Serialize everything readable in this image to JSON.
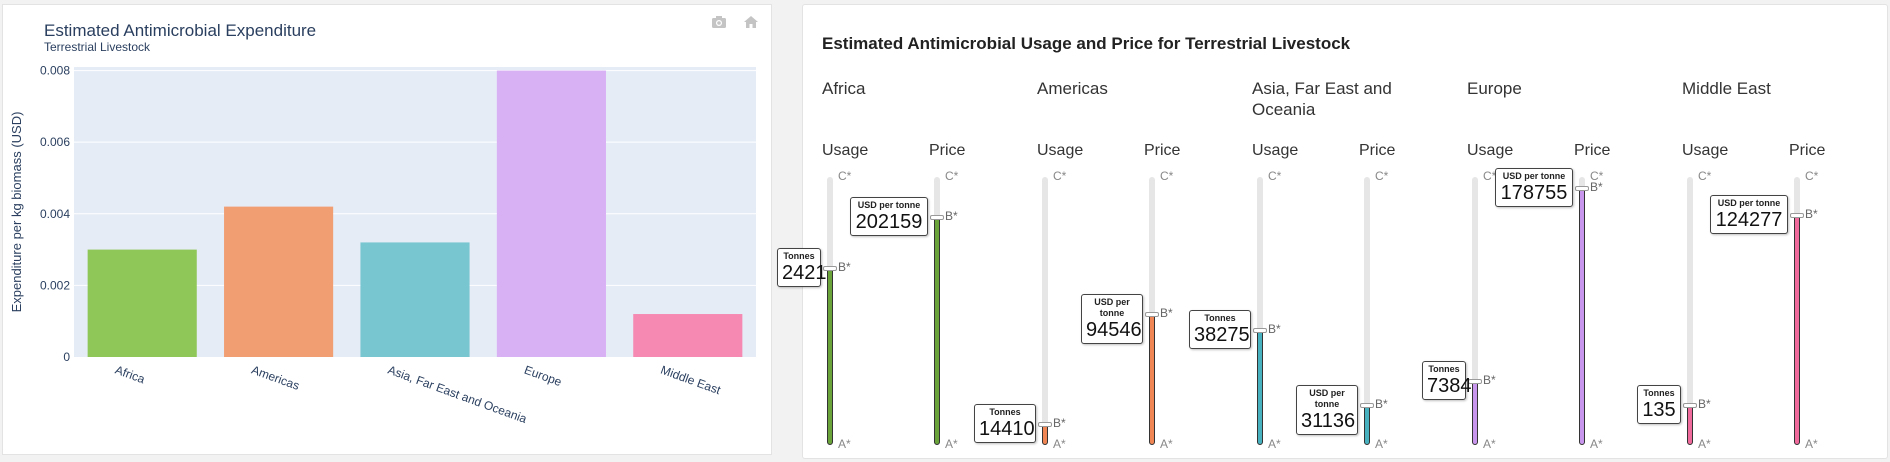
{
  "left_chart": {
    "title": "Estimated Antimicrobial Expenditure",
    "subtitle": "Terrestrial Livestock",
    "modebar_icons": [
      "camera-icon",
      "home-icon"
    ],
    "chart_data": {
      "type": "bar",
      "categories": [
        "Africa",
        "Americas",
        "Asia, Far East and Oceania",
        "Europe",
        "Middle East"
      ],
      "values": [
        0.003,
        0.0042,
        0.0032,
        0.008,
        0.0012
      ],
      "colors": [
        "#8fc758",
        "#f19e72",
        "#77c6d0",
        "#d8b0f4",
        "#f589b1"
      ],
      "xlabel": "",
      "ylabel": "Expenditure per kg biomass (USD)",
      "ylim": [
        0,
        0.0081
      ],
      "yticks": [
        0,
        0.002,
        0.004,
        0.006,
        0.008
      ],
      "ytick_labels": [
        "0",
        "0.002",
        "0.004",
        "0.006",
        "0.008"
      ],
      "plot_background": "#e5ecf6",
      "grid": true
    }
  },
  "right_panel": {
    "title": "Estimated Antimicrobial Usage and Price for Terrestrial Livestock",
    "usage_label": "Usage",
    "price_label": "Price",
    "usage_unit": "Tonnes",
    "price_unit": "USD per tonne",
    "tick_labels": {
      "top": "C*",
      "mid": "B*",
      "bottom": "A*"
    },
    "chart_data": {
      "type": "bar",
      "note": "Gauge levels read as fraction of the A*–C* scale",
      "regions": [
        {
          "name": "Africa",
          "color": "#6aa33a",
          "usage": 2421,
          "usage_level": 0.66,
          "price": 202159,
          "price_level": 0.85
        },
        {
          "name": "Americas",
          "color": "#ef8654",
          "usage": 14410,
          "usage_level": 0.08,
          "price": 94546,
          "price_level": 0.49
        },
        {
          "name": "Asia, Far East and Oceania",
          "color": "#47b1bf",
          "usage": 38275,
          "usage_level": 0.43,
          "price": 31136,
          "price_level": 0.15
        },
        {
          "name": "Europe",
          "color": "#c996ee",
          "usage": 7384,
          "usage_level": 0.24,
          "price": 178755,
          "price_level": 0.96
        },
        {
          "name": "Middle East",
          "color": "#f16a9c",
          "usage": 135,
          "usage_level": 0.15,
          "price": 124277,
          "price_level": 0.86
        }
      ]
    }
  }
}
